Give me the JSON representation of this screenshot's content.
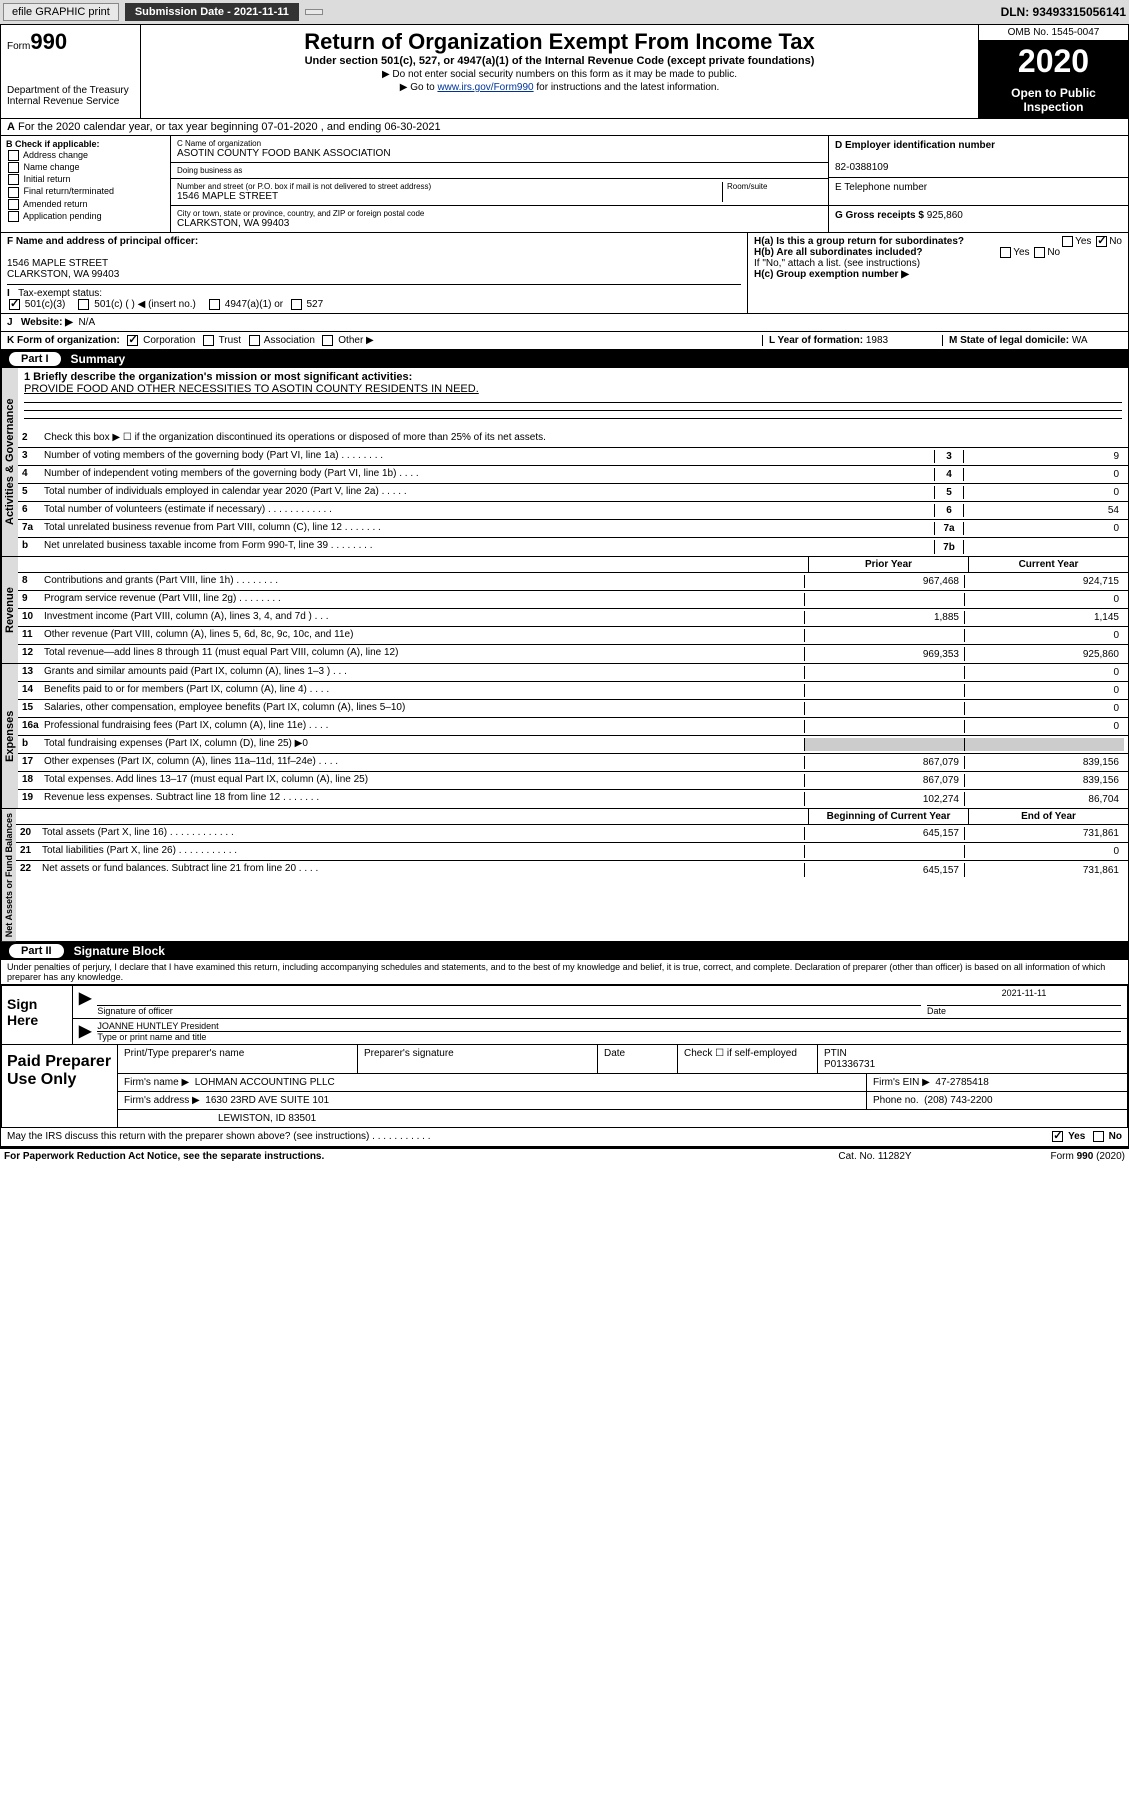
{
  "topbar": {
    "efile": "efile GRAPHIC print",
    "submission": "Submission Date - 2021-11-11",
    "dln": "DLN: 93493315056141"
  },
  "header": {
    "form": "Form",
    "formnum": "990",
    "dept": "Department of the Treasury\nInternal Revenue Service",
    "title": "Return of Organization Exempt From Income Tax",
    "subtitle": "Under section 501(c), 527, or 4947(a)(1) of the Internal Revenue Code (except private foundations)",
    "note1": "▶ Do not enter social security numbers on this form as it may be made to public.",
    "note2_pre": "▶ Go to ",
    "note2_link": "www.irs.gov/Form990",
    "note2_post": " for instructions and the latest information.",
    "omb": "OMB No. 1545-0047",
    "year": "2020",
    "open": "Open to Public Inspection"
  },
  "lineA": "For the 2020 calendar year, or tax year beginning 07-01-2020    , and ending 06-30-2021",
  "sectionB": {
    "label": "B Check if applicable:",
    "opts": [
      "Address change",
      "Name change",
      "Initial return",
      "Final return/terminated",
      "Amended return",
      "Application pending"
    ],
    "c_label": "C Name of organization",
    "c_name": "ASOTIN COUNTY FOOD BANK ASSOCIATION",
    "dba_label": "Doing business as",
    "dba": "",
    "addr_label": "Number and street (or P.O. box if mail is not delivered to street address)",
    "room_label": "Room/suite",
    "addr": "1546 MAPLE STREET",
    "city_label": "City or town, state or province, country, and ZIP or foreign postal code",
    "city": "CLARKSTON, WA  99403",
    "d_label": "D Employer identification number",
    "d_val": "82-0388109",
    "e_label": "E Telephone number",
    "e_val": "",
    "g_label": "G Gross receipts $",
    "g_val": "925,860"
  },
  "rowF": {
    "f_label": "F  Name and address of principal officer:",
    "f_val": "1546 MAPLE STREET\nCLARKSTON, WA  99403",
    "ha_label": "H(a)  Is this a group return for subordinates?",
    "hb_label": "H(b)  Are all subordinates included?",
    "hb_note": "If \"No,\" attach a list. (see instructions)",
    "hc_label": "H(c)  Group exemption number ▶"
  },
  "rowI": {
    "label": "Tax-exempt status:",
    "opt1": "501(c)(3)",
    "opt2": "501(c) (   ) ◀ (insert no.)",
    "opt3": "4947(a)(1) or",
    "opt4": "527"
  },
  "rowJ": {
    "label": "Website: ▶",
    "val": "N/A"
  },
  "rowK": {
    "label": "K Form of organization:",
    "opts": [
      "Corporation",
      "Trust",
      "Association",
      "Other ▶"
    ],
    "l_label": "L Year of formation:",
    "l_val": "1983",
    "m_label": "M State of legal domicile:",
    "m_val": "WA"
  },
  "part1": {
    "num": "Part I",
    "title": "Summary"
  },
  "summary": {
    "q1_label": "1  Briefly describe the organization's mission or most significant activities:",
    "q1_val": "PROVIDE FOOD AND OTHER NECESSITIES TO ASOTIN COUNTY RESIDENTS IN NEED.",
    "q2": "Check this box ▶ ☐  if the organization discontinued its operations or disposed of more than 25% of its net assets.",
    "gov_label": "Activities & Governance",
    "rev_label": "Revenue",
    "exp_label": "Expenses",
    "net_label": "Net Assets or Fund Balances",
    "lines_a": [
      {
        "n": "3",
        "d": "Number of voting members of the governing body (Part VI, line 1a)   .    .    .    .    .    .    .    .",
        "c": "3",
        "v": "9"
      },
      {
        "n": "4",
        "d": "Number of independent voting members of the governing body (Part VI, line 1b)   .    .    .    .",
        "c": "4",
        "v": "0"
      },
      {
        "n": "5",
        "d": "Total number of individuals employed in calendar year 2020 (Part V, line 2a)   .    .    .    .    .",
        "c": "5",
        "v": "0"
      },
      {
        "n": "6",
        "d": "Total number of volunteers (estimate if necessary)   .    .    .    .    .    .    .    .    .    .    .    .",
        "c": "6",
        "v": "54"
      },
      {
        "n": "7a",
        "d": "Total unrelated business revenue from Part VIII, column (C), line 12   .    .    .    .    .    .    .",
        "c": "7a",
        "v": "0"
      },
      {
        "n": "b",
        "d": "Net unrelated business taxable income from Form 990-T, line 39   .    .    .    .    .    .    .    .",
        "c": "7b",
        "v": ""
      }
    ],
    "prior_year": "Prior Year",
    "current_year": "Current Year",
    "lines_rev": [
      {
        "n": "8",
        "d": "Contributions and grants (Part VIII, line 1h)   .    .    .    .    .    .    .    .",
        "p": "967,468",
        "c": "924,715"
      },
      {
        "n": "9",
        "d": "Program service revenue (Part VIII, line 2g)   .    .    .    .    .    .    .    .",
        "p": "",
        "c": "0"
      },
      {
        "n": "10",
        "d": "Investment income (Part VIII, column (A), lines 3, 4, and 7d )   .    .    .",
        "p": "1,885",
        "c": "1,145"
      },
      {
        "n": "11",
        "d": "Other revenue (Part VIII, column (A), lines 5, 6d, 8c, 9c, 10c, and 11e)",
        "p": "",
        "c": "0"
      },
      {
        "n": "12",
        "d": "Total revenue—add lines 8 through 11 (must equal Part VIII, column (A), line 12)",
        "p": "969,353",
        "c": "925,860"
      }
    ],
    "lines_exp": [
      {
        "n": "13",
        "d": "Grants and similar amounts paid (Part IX, column (A), lines 1–3 )   .    .    .",
        "p": "",
        "c": "0"
      },
      {
        "n": "14",
        "d": "Benefits paid to or for members (Part IX, column (A), line 4)   .    .    .    .",
        "p": "",
        "c": "0"
      },
      {
        "n": "15",
        "d": "Salaries, other compensation, employee benefits (Part IX, column (A), lines 5–10)",
        "p": "",
        "c": "0"
      },
      {
        "n": "16a",
        "d": "Professional fundraising fees (Part IX, column (A), line 11e)   .    .    .    .",
        "p": "",
        "c": "0"
      },
      {
        "n": "b",
        "d": "Total fundraising expenses (Part IX, column (D), line 25) ▶0",
        "p": "GREY",
        "c": "GREY"
      },
      {
        "n": "17",
        "d": "Other expenses (Part IX, column (A), lines 11a–11d, 11f–24e)   .    .    .    .",
        "p": "867,079",
        "c": "839,156"
      },
      {
        "n": "18",
        "d": "Total expenses. Add lines 13–17 (must equal Part IX, column (A), line 25)",
        "p": "867,079",
        "c": "839,156"
      },
      {
        "n": "19",
        "d": "Revenue less expenses. Subtract line 18 from line 12   .    .    .    .    .    .    .",
        "p": "102,274",
        "c": "86,704"
      }
    ],
    "beg_year": "Beginning of Current Year",
    "end_year": "End of Year",
    "lines_net": [
      {
        "n": "20",
        "d": "Total assets (Part X, line 16)   .    .    .    .    .    .    .    .    .    .    .    .",
        "p": "645,157",
        "c": "731,861"
      },
      {
        "n": "21",
        "d": "Total liabilities (Part X, line 26)   .    .    .    .    .    .    .    .    .    .    .",
        "p": "",
        "c": "0"
      },
      {
        "n": "22",
        "d": "Net assets or fund balances. Subtract line 21 from line 20   .    .    .    .",
        "p": "645,157",
        "c": "731,861"
      }
    ]
  },
  "part2": {
    "num": "Part II",
    "title": "Signature Block"
  },
  "penalty": "Under penalties of perjury, I declare that I have examined this return, including accompanying schedules and statements, and to the best of my knowledge and belief, it is true, correct, and complete. Declaration of preparer (other than officer) is based on all information of which preparer has any knowledge.",
  "sign": {
    "here": "Sign Here",
    "sig_officer": "Signature of officer",
    "date": "2021-11-11",
    "date_label": "Date",
    "name": "JOANNE HUNTLEY President",
    "name_label": "Type or print name and title"
  },
  "paid": {
    "title": "Paid Preparer Use Only",
    "h1": "Print/Type preparer's name",
    "h2": "Preparer's signature",
    "h3": "Date",
    "h4_pre": "Check ☐ if self-employed",
    "h5": "PTIN",
    "ptin": "P01336731",
    "firm_label": "Firm's name    ▶",
    "firm": "LOHMAN ACCOUNTING PLLC",
    "ein_label": "Firm's EIN ▶",
    "ein": "47-2785418",
    "addr_label": "Firm's address ▶",
    "addr1": "1630 23RD AVE SUITE 101",
    "addr2": "LEWISTON, ID  83501",
    "phone_label": "Phone no.",
    "phone": "(208) 743-2200"
  },
  "discuss": "May the IRS discuss this return with the preparer shown above? (see instructions)   .    .    .    .    .    .    .    .    .    .    .",
  "footer": {
    "f1": "For Paperwork Reduction Act Notice, see the separate instructions.",
    "f2": "Cat. No. 11282Y",
    "f3": "Form 990 (2020)"
  }
}
